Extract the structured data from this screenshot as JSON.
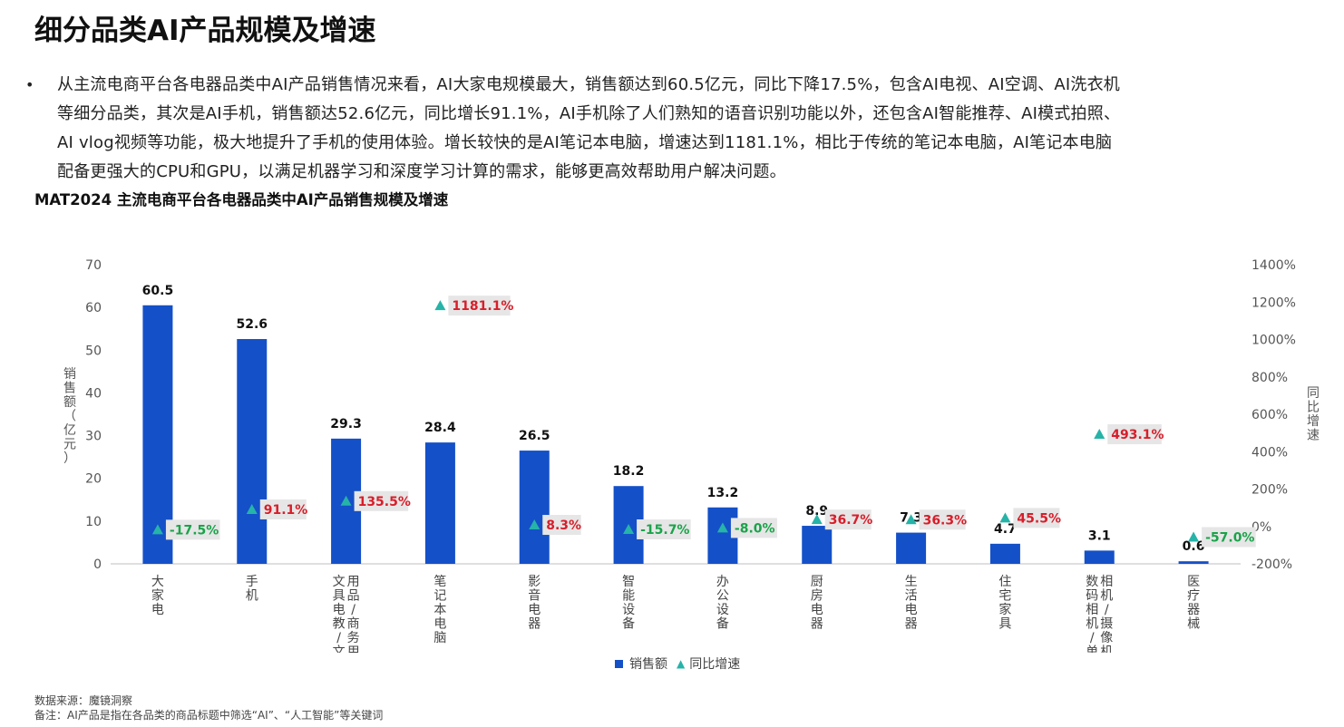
{
  "page_title": "细分品类AI产品规模及增速",
  "bullet_symbol": "•",
  "bullet_lines": [
    "从主流电商平台各电器品类中AI产品销售情况来看，AI大家电规模最大，销售额达到60.5亿元，同比下降17.5%，包含AI电视、AI空调、AI洗衣机",
    "等细分品类，其次是AI手机，销售额达52.6亿元，同比增长91.1%，AI手机除了人们熟知的语音识别功能以外，还包含AI智能推荐、AI模式拍照、",
    "AI vlog视频等功能，极大地提升了手机的使用体验。增长较快的是AI笔记本电脑，增速达到1181.1%，相比于传统的笔记本电脑，AI笔记本电脑",
    "配备更强大的CPU和GPU，以满足机器学习和深度学习计算的需求，能够更高效帮助用户解决问题。"
  ],
  "chart_title": "MAT2024 主流电商平台各电器品类中AI产品销售规模及增速",
  "chart_data": {
    "type": "bar",
    "categories": [
      "大家电",
      "手机",
      "文具电教/文化用品/商务用品",
      "笔记本电脑",
      "影音电器",
      "智能设备",
      "办公设备",
      "厨房电器",
      "生活电器",
      "住宅家具",
      "数码相机/单反相机/摄像机",
      "医疗器械"
    ],
    "category_label_columns": [
      [
        "大家电"
      ],
      [
        "手机"
      ],
      [
        "文具电教/文化",
        "用品/商务用品"
      ],
      [
        "笔记本电脑"
      ],
      [
        "影音电器"
      ],
      [
        "智能设备"
      ],
      [
        "办公设备"
      ],
      [
        "厨房电器"
      ],
      [
        "生活电器"
      ],
      [
        "住宅家具"
      ],
      [
        "数码相机/单反",
        "相机/摄像机"
      ],
      [
        "医疗器械"
      ]
    ],
    "series": [
      {
        "name": "销售额",
        "type": "bar",
        "axis": "left",
        "color": "#1450c8",
        "values": [
          60.5,
          52.6,
          29.3,
          28.4,
          26.5,
          18.2,
          13.2,
          8.9,
          7.3,
          4.7,
          3.1,
          0.6
        ],
        "labels": [
          "60.5",
          "52.6",
          "29.3",
          "28.4",
          "26.5",
          "18.2",
          "13.2",
          "8.9",
          "7.3",
          "4.7",
          "3.1",
          "0.6"
        ]
      },
      {
        "name": "同比增速",
        "type": "scatter",
        "marker": "triangle",
        "axis": "right",
        "color": "#26b3a8",
        "values": [
          -17.5,
          91.1,
          135.5,
          1181.1,
          8.3,
          -15.7,
          -8.0,
          36.7,
          36.3,
          45.5,
          493.1,
          -57.0
        ],
        "labels": [
          "-17.5%",
          "91.1%",
          "135.5%",
          "1181.1%",
          "8.3%",
          "-15.7%",
          "-8.0%",
          "36.7%",
          "36.3%",
          "45.5%",
          "493.1%",
          "-57.0%"
        ]
      }
    ],
    "ylabel": "销售额（亿元）",
    "ylim": [
      0,
      70
    ],
    "yticks": [
      "0",
      "10",
      "20",
      "30",
      "40",
      "50",
      "60",
      "70"
    ],
    "y2label": "同比增速",
    "y2lim": [
      -200,
      1400
    ],
    "y2ticks": [
      "-200%",
      "0%",
      "200%",
      "400%",
      "600%",
      "800%",
      "1000%",
      "1200%",
      "1400%"
    ],
    "positive_label_color": "#d81e2a",
    "negative_label_color": "#1aa34a",
    "label_box_color": "#e6e6e6",
    "grid": false,
    "legend_position": "bottom-center"
  },
  "legend": {
    "bar": "销售额",
    "marker": "同比增速"
  },
  "footnotes": [
    "数据来源：魔镜洞察",
    "备注：AI产品是指在各品类的商品标题中筛选“AI”、“人工智能”等关键词"
  ]
}
